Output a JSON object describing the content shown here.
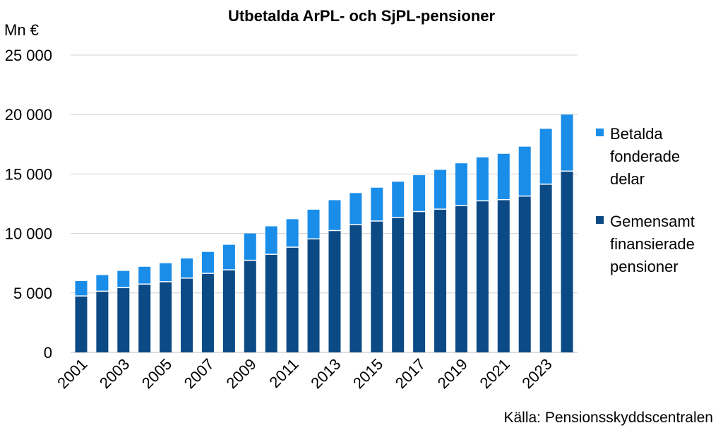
{
  "chart_data": {
    "type": "bar",
    "stacked": true,
    "title": "Utbetalda ArPL- och SjPL-pensioner",
    "ylabel": "Mn €",
    "ylim": [
      0,
      25000
    ],
    "yticks": [
      0,
      5000,
      10000,
      15000,
      20000,
      25000
    ],
    "ytick_labels": [
      "0",
      "5 000",
      "10 000",
      "15 000",
      "20 000",
      "25 000"
    ],
    "grid": true,
    "categories": [
      "2001",
      "2002",
      "2003",
      "2004",
      "2005",
      "2006",
      "2007",
      "2008",
      "2009",
      "2010",
      "2011",
      "2012",
      "2013",
      "2014",
      "2015",
      "2016",
      "2017",
      "2018",
      "2019",
      "2020",
      "2021",
      "2022",
      "2023",
      "2024"
    ],
    "xtick_labels": [
      "2001",
      "2003",
      "2005",
      "2007",
      "2009",
      "2011",
      "2013",
      "2015",
      "2017",
      "2019",
      "2021",
      "2023"
    ],
    "series": [
      {
        "name": "Gemensamt finansierade pensioner",
        "legend_lines": [
          "Gemensamt",
          "finansierade",
          "pensioner"
        ],
        "color": "#0b4a85",
        "values": [
          4700,
          5100,
          5400,
          5700,
          5900,
          6200,
          6600,
          6900,
          7700,
          8200,
          8800,
          9500,
          10200,
          10700,
          11000,
          11300,
          11800,
          12000,
          12300,
          12700,
          12800,
          13100,
          14100,
          15200
        ]
      },
      {
        "name": "Betalda fonderade delar",
        "legend_lines": [
          "Betalda",
          "fonderade",
          "delar"
        ],
        "color": "#1a8de9",
        "values": [
          1300,
          1400,
          1450,
          1500,
          1600,
          1700,
          1850,
          2150,
          2300,
          2400,
          2400,
          2500,
          2600,
          2700,
          2850,
          3050,
          3100,
          3350,
          3600,
          3700,
          3900,
          4200,
          4700,
          4800
        ]
      }
    ],
    "legend_position": "right",
    "source": "Källa: Pensionsskyddscentralen"
  }
}
